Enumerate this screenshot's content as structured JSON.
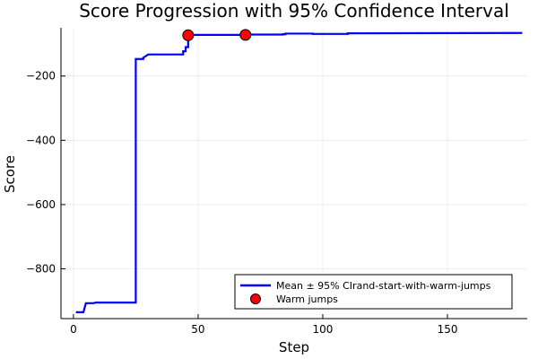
{
  "chart_data": {
    "type": "line",
    "title": "Score Progression with 95% Confidence Interval",
    "xlabel": "Step",
    "ylabel": "Score",
    "xlim": [
      -5,
      182
    ],
    "ylim": [
      -955,
      -50
    ],
    "xticks": [
      0,
      50,
      100,
      150
    ],
    "yticks": [
      -200,
      -400,
      -600,
      -800
    ],
    "xtick_labels": [
      "0",
      "50",
      "100",
      "150"
    ],
    "ytick_labels": [
      "−200",
      "−400",
      "−600",
      "−800"
    ],
    "grid": true,
    "legend_position": "bottom-right",
    "series": [
      {
        "name": "Mean ± 95% CIrand-start-with-warm-jumps",
        "color": "#0000ff",
        "style": "step-line",
        "x": [
          1,
          4,
          5,
          8,
          9,
          25,
          25,
          28,
          28,
          30,
          44,
          44,
          45,
          45,
          46,
          46,
          47,
          47,
          70,
          70,
          84,
          84,
          85,
          85,
          96,
          96,
          110,
          110,
          180
        ],
        "y": [
          -935,
          -935,
          -907,
          -907,
          -905,
          -905,
          -147,
          -147,
          -143,
          -133,
          -133,
          -123,
          -123,
          -110,
          -110,
          -76,
          -76,
          -72,
          -72,
          -71,
          -71,
          -70,
          -70,
          -68,
          -68,
          -69,
          -69,
          -67,
          -66
        ]
      },
      {
        "name": "Warm jumps",
        "color": "#ff0000",
        "style": "markers",
        "x": [
          46,
          69
        ],
        "y": [
          -73,
          -72
        ]
      }
    ]
  }
}
